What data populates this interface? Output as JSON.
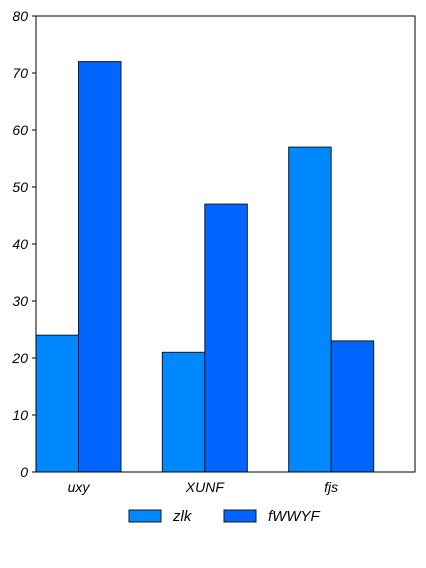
{
  "chart_data": {
    "type": "bar",
    "title": "",
    "xlabel": "",
    "ylabel": "",
    "categories": [
      "uxy",
      "XUNF",
      "fjs"
    ],
    "series": [
      {
        "name": "zlk",
        "values": [
          24,
          21,
          57
        ],
        "color": "#0088ff"
      },
      {
        "name": "fWWYF",
        "values": [
          72,
          47,
          23
        ],
        "color": "#0066ff"
      }
    ],
    "ylim": [
      0,
      80
    ],
    "yticks": [
      0,
      10,
      20,
      30,
      40,
      50,
      60,
      70,
      80
    ],
    "grid": false,
    "legend_position": "bottom"
  }
}
